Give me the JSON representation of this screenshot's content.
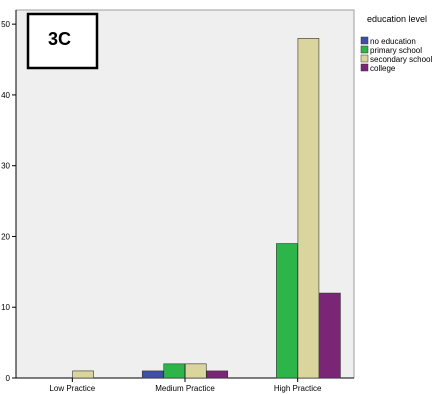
{
  "panel_label": "3C",
  "chart_data": {
    "type": "bar",
    "categories": [
      "Low Practice",
      "Medium Practice",
      "High Practice"
    ],
    "series": [
      {
        "name": "no education",
        "color": "#3f4fa6",
        "values": [
          0,
          1,
          0
        ]
      },
      {
        "name": "primary school",
        "color": "#2db54a",
        "values": [
          0,
          2,
          19
        ]
      },
      {
        "name": "secondary school",
        "color": "#d9d59c",
        "values": [
          1,
          2,
          48
        ]
      },
      {
        "name": "college",
        "color": "#7b2577",
        "values": [
          0,
          1,
          12
        ]
      }
    ],
    "legend_title": "education level",
    "legend_position": "top-right",
    "ylim": [
      0,
      52
    ],
    "yticks": [
      0,
      10,
      20,
      30,
      40,
      50
    ],
    "plot_background": "#efefef"
  }
}
